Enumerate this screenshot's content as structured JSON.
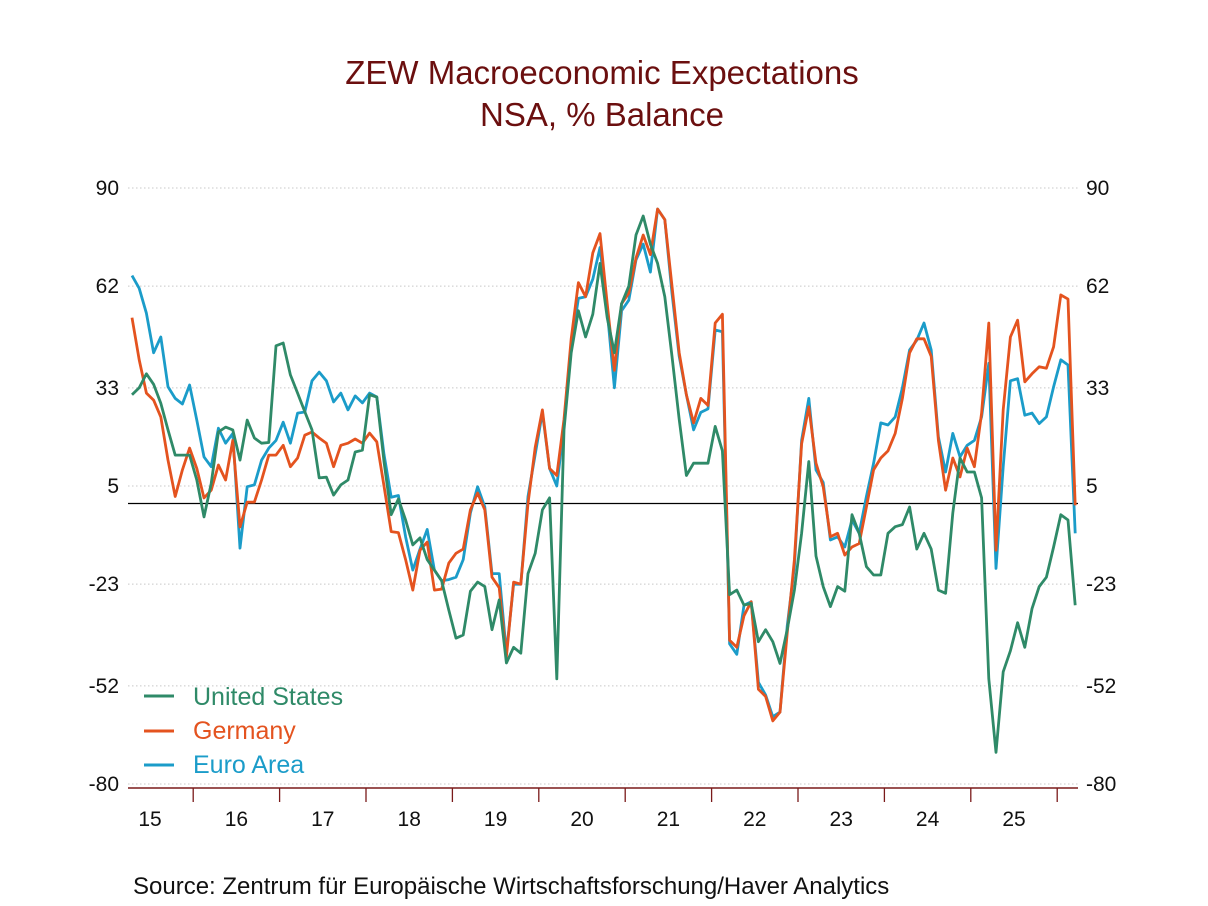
{
  "chart_data": {
    "type": "line",
    "title": "ZEW Macroeconomic Expectations",
    "subtitle": "NSA, % Balance",
    "source": "Source:  Zentrum für Europäische Wirtschaftsforschung/Haver Analytics",
    "ylim": [
      -80,
      90
    ],
    "yticks": [
      "90",
      "62",
      "33",
      "5",
      "-23",
      "-52",
      "-80"
    ],
    "ytick_values": [
      90,
      62,
      33,
      5,
      -23,
      -52,
      -80
    ],
    "xtick_labels": [
      "15",
      "16",
      "17",
      "18",
      "19",
      "20",
      "21",
      "22",
      "23",
      "24",
      "25"
    ],
    "grid": "horizontal dotted",
    "reference_line": 0,
    "legend_position": "bottom-left",
    "frequency": "monthly",
    "x": [
      "2015-04",
      "2015-05",
      "2015-06",
      "2015-07",
      "2015-08",
      "2015-09",
      "2015-10",
      "2015-11",
      "2015-12",
      "2016-01",
      "2016-02",
      "2016-03",
      "2016-04",
      "2016-05",
      "2016-06",
      "2016-07",
      "2016-08",
      "2016-09",
      "2016-10",
      "2016-11",
      "2016-12",
      "2017-01",
      "2017-02",
      "2017-03",
      "2017-04",
      "2017-05",
      "2017-06",
      "2017-07",
      "2017-08",
      "2017-09",
      "2017-10",
      "2017-11",
      "2017-12",
      "2018-01",
      "2018-02",
      "2018-03",
      "2018-04",
      "2018-05",
      "2018-06",
      "2018-07",
      "2018-08",
      "2018-09",
      "2018-10",
      "2018-11",
      "2018-12",
      "2019-01",
      "2019-02",
      "2019-03",
      "2019-04",
      "2019-05",
      "2019-06",
      "2019-07",
      "2019-08",
      "2019-09",
      "2019-10",
      "2019-11",
      "2019-12",
      "2020-01",
      "2020-02",
      "2020-03",
      "2020-04",
      "2020-05",
      "2020-06",
      "2020-07",
      "2020-08",
      "2020-09",
      "2020-10",
      "2020-11",
      "2020-12",
      "2021-01",
      "2021-02",
      "2021-03",
      "2021-04",
      "2021-05",
      "2021-06",
      "2021-07",
      "2021-08",
      "2021-09",
      "2021-10",
      "2021-11",
      "2021-12",
      "2022-01",
      "2022-02",
      "2022-03",
      "2022-04",
      "2022-05",
      "2022-06",
      "2022-07",
      "2022-08",
      "2022-09",
      "2022-10",
      "2022-11",
      "2022-12",
      "2023-01",
      "2023-02",
      "2023-03",
      "2023-04",
      "2023-05",
      "2023-06",
      "2023-07",
      "2023-08",
      "2023-09",
      "2023-10",
      "2023-11",
      "2023-12",
      "2024-01",
      "2024-02",
      "2024-03",
      "2024-04",
      "2024-05",
      "2024-06",
      "2024-07",
      "2024-08",
      "2024-09",
      "2024-10",
      "2024-11",
      "2024-12",
      "2025-01",
      "2025-02",
      "2025-03",
      "2025-04",
      "2025-05",
      "2025-06",
      "2025-07",
      "2025-08",
      "2025-09",
      "2025-10",
      "2025-11",
      "2025-12",
      "2026-01",
      "2026-02",
      "2026-03"
    ],
    "series": [
      {
        "name": "United States",
        "color": "#2f8a68",
        "values": [
          31,
          33,
          37,
          34,
          28.6,
          21,
          13.8,
          13.8,
          13.8,
          6.7,
          -3.8,
          5.7,
          20.4,
          21.8,
          21,
          12.4,
          23.8,
          18.7,
          17.2,
          17.4,
          45,
          45.8,
          36.7,
          31.5,
          26.2,
          21,
          7.3,
          7.5,
          2.4,
          5.3,
          6.7,
          14.7,
          15.2,
          31,
          30.4,
          12,
          -3.2,
          1.3,
          -4.7,
          -11.8,
          -9.8,
          -16,
          -19,
          -22,
          -30.4,
          -38.4,
          -37.5,
          -25,
          -22.4,
          -23.7,
          -36,
          -27.5,
          -45.5,
          -41,
          -42.7,
          -20,
          -14.2,
          -1.8,
          1.6,
          -50,
          21,
          43,
          55,
          47.5,
          54,
          68.5,
          53,
          43,
          57,
          62,
          76.6,
          82,
          74,
          68.5,
          59,
          42,
          24,
          8,
          11.5,
          11.5,
          11.5,
          22,
          15,
          -26,
          -24.7,
          -29,
          -28.5,
          -39.4,
          -36,
          -39.4,
          -45.6,
          -36,
          -24.7,
          -8.5,
          12,
          -15,
          -23.7,
          -29.4,
          -23.7,
          -25,
          -3.2,
          -8.5,
          -18,
          -20.4,
          -20.4,
          -8.5,
          -6.6,
          -6,
          -1,
          -13,
          -8.5,
          -13,
          -24.7,
          -25.6,
          -2.7,
          13,
          9,
          9,
          1.6,
          -50,
          -71,
          -48,
          -42,
          -34,
          -41,
          -30,
          -23.7,
          -21,
          -12.4,
          -3.2,
          -4.7,
          -29
        ]
      },
      {
        "name": "Germany",
        "color": "#e4531f",
        "values": [
          53,
          41,
          31.5,
          29.5,
          24.7,
          12.4,
          2,
          9.6,
          15.8,
          10,
          1.6,
          3.8,
          11,
          6.7,
          18,
          -6.7,
          0.4,
          0.4,
          6.7,
          13.8,
          13.8,
          16.6,
          10.5,
          13,
          19.5,
          20.4,
          18.7,
          17.2,
          10.5,
          16.6,
          17.2,
          18.4,
          17.2,
          20.1,
          17.6,
          5,
          -8,
          -8.3,
          -16,
          -24.7,
          -13.3,
          -11,
          -24.7,
          -24.4,
          -17,
          -14.2,
          -13,
          -1.8,
          3,
          -1.8,
          -21,
          -24,
          -43.7,
          -22.4,
          -23,
          0,
          16,
          26.7,
          10,
          8,
          24,
          47,
          63,
          59,
          71.5,
          77,
          57,
          38,
          57,
          60,
          70,
          76.6,
          71,
          84,
          81,
          62,
          43,
          31,
          23,
          30,
          28,
          51.5,
          54,
          -39,
          -41,
          -32,
          -28,
          -53,
          -55,
          -62,
          -59.5,
          -37,
          -16,
          17,
          27.6,
          11.5,
          4.8,
          -9.5,
          -8.5,
          -14.7,
          -12.4,
          -11.4,
          -1,
          9.6,
          13,
          15,
          20,
          30,
          43,
          47,
          47,
          42,
          18,
          3.8,
          13,
          7.6,
          15.8,
          10.5,
          25.8,
          51.5,
          -13.3,
          26.7,
          47.5,
          52.3,
          34.7,
          37,
          39,
          38.6,
          44.7,
          59.5,
          58.3,
          -0.5
        ]
      },
      {
        "name": "Euro Area",
        "color": "#1b9cc9",
        "values": [
          65,
          61.4,
          54.3,
          43,
          47.5,
          33.3,
          30,
          28.4,
          33.8,
          23.8,
          13.3,
          10.5,
          21.5,
          17.2,
          20,
          -12.7,
          4.8,
          5.3,
          12.4,
          15.8,
          18,
          23.2,
          17.2,
          25.8,
          26.1,
          35,
          37.5,
          35,
          29,
          31.5,
          26.7,
          30.7,
          28.7,
          31.5,
          30.4,
          14,
          1.8,
          2.3,
          -9.5,
          -19,
          -13,
          -7.4,
          -19,
          -22,
          -21.7,
          -21,
          -16,
          -2.7,
          4.8,
          -1,
          -20,
          -20,
          -42.7,
          -23,
          -23,
          2,
          14,
          26,
          10,
          5,
          22,
          45,
          58.5,
          59,
          64,
          73,
          55,
          33,
          55,
          58,
          69.5,
          74,
          66,
          84,
          81,
          60,
          42,
          31,
          21,
          26,
          27,
          49.5,
          49,
          -40,
          -43,
          -29,
          -28,
          -51,
          -54.6,
          -60.8,
          -59.5,
          -35,
          -18,
          18,
          30,
          9.6,
          6,
          -10.4,
          -9.5,
          -12.4,
          -4.7,
          -8.5,
          2,
          11.5,
          23,
          22.4,
          24.7,
          33,
          43.8,
          46.6,
          51.5,
          43.8,
          19,
          9,
          20,
          13.3,
          16.6,
          18,
          24.7,
          40,
          -18.5,
          10.5,
          35,
          35.6,
          25.2,
          25.8,
          22.8,
          24.7,
          33.3,
          41,
          39.5,
          -8.5
        ]
      }
    ]
  }
}
